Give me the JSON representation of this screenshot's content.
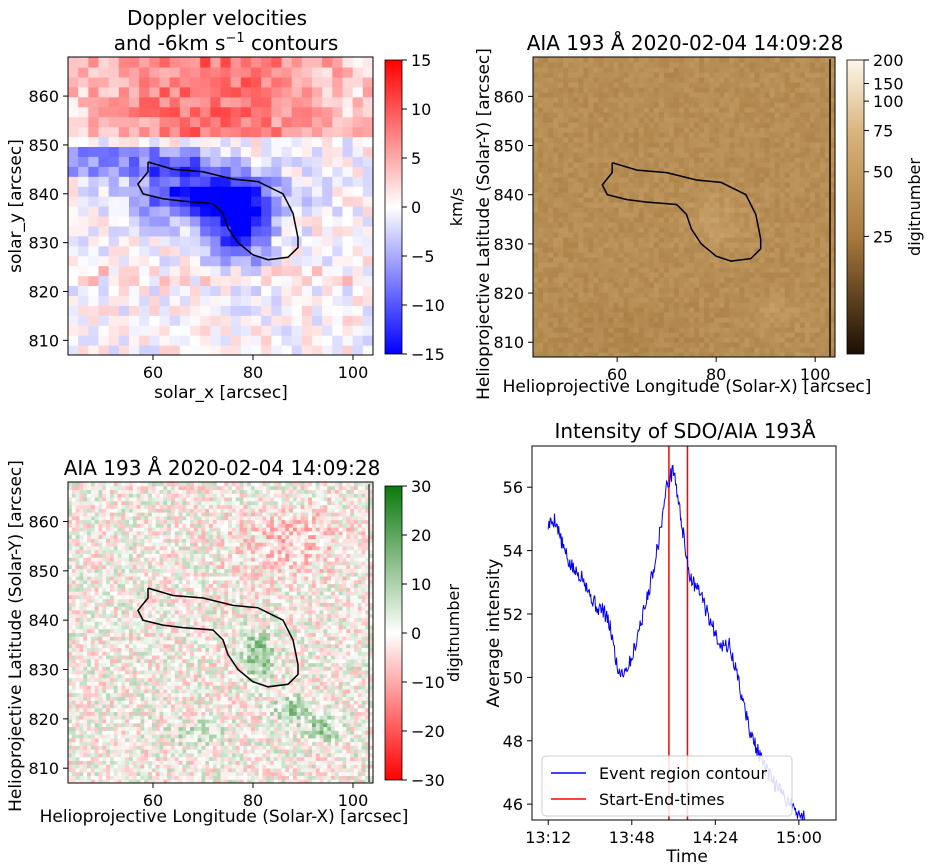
{
  "panels": {
    "doppler": {
      "title_line1": "Doppler velocities",
      "title_line2_prefix": "and -6km s",
      "title_line2_sup": "−1",
      "title_line2_suffix": " contours",
      "xlabel": "solar_x [arcsec]",
      "ylabel": "solar_y [arcsec]",
      "xticks": [
        "60",
        "80",
        "100"
      ],
      "yticks": [
        "860",
        "850",
        "840",
        "830",
        "820",
        "810"
      ],
      "colorbar": {
        "label": "km/s",
        "ticks": [
          "15",
          "10",
          "5",
          "0",
          "−5",
          "−10",
          "−15"
        ],
        "colors": {
          "high": "#ff0000",
          "mid": "#ffffff",
          "low": "#0000ff"
        }
      }
    },
    "aia": {
      "title": "AIA 193 Å 2020-02-04 14:09:28",
      "xlabel": "Helioprojective Longitude (Solar-X) [arcsec]",
      "ylabel": "Helioprojective Latitude (Solar-Y) [arcsec]",
      "xticks": [
        "60",
        "80",
        "100"
      ],
      "yticks": [
        "860",
        "850",
        "840",
        "830",
        "820",
        "810"
      ],
      "colorbar": {
        "label": "digitnumber",
        "ticks": [
          "200",
          "150",
          "100",
          "75",
          "50",
          "25"
        ],
        "colors": {
          "high": "#fdf7ea",
          "mid": "#a87a3e",
          "low": "#1c0f04"
        }
      }
    },
    "diff": {
      "title": "AIA 193 Å 2020-02-04 14:09:28",
      "xlabel": "Helioprojective Longitude (Solar-X) [arcsec]",
      "ylabel": "Helioprojective Latitude (Solar-Y) [arcsec]",
      "xticks": [
        "60",
        "80",
        "100"
      ],
      "yticks": [
        "860",
        "850",
        "840",
        "830",
        "820",
        "810"
      ],
      "colorbar": {
        "label": "digitnumber",
        "ticks": [
          "30",
          "20",
          "10",
          "0",
          "−10",
          "−20",
          "−30"
        ],
        "colors": {
          "high": "#0a7a0a",
          "mid": "#ffffff",
          "low": "#ff0000"
        }
      }
    }
  },
  "chart_data": [
    {
      "type": "heatmap",
      "title": "Doppler velocities and -6km s−1 contours",
      "xlabel": "solar_x [arcsec]",
      "ylabel": "solar_y [arcsec]",
      "xlim": [
        43,
        104
      ],
      "ylim": [
        807,
        868
      ],
      "color_range": [
        -15,
        15
      ],
      "colorbar_label": "km/s",
      "contour_level": -6,
      "contour": [
        [
          59,
          846.5
        ],
        [
          64,
          845
        ],
        [
          70,
          844.5
        ],
        [
          76,
          843
        ],
        [
          81,
          842.5
        ],
        [
          86,
          840
        ],
        [
          88,
          836
        ],
        [
          89,
          831
        ],
        [
          89,
          829
        ],
        [
          87,
          827
        ],
        [
          83,
          826.5
        ],
        [
          80,
          827.5
        ],
        [
          77,
          830
        ],
        [
          75,
          833
        ],
        [
          74,
          836
        ],
        [
          72,
          838
        ],
        [
          66,
          838.5
        ],
        [
          62,
          839
        ],
        [
          58,
          840
        ],
        [
          57,
          842
        ],
        [
          59,
          844.5
        ],
        [
          59,
          846.5
        ]
      ]
    },
    {
      "type": "heatmap",
      "title": "AIA 193 Å 2020-02-04 14:09:28",
      "xlabel": "Helioprojective Longitude (Solar-X) [arcsec]",
      "ylabel": "Helioprojective Latitude (Solar-Y) [arcsec]",
      "xlim": [
        43,
        104
      ],
      "ylim": [
        807,
        868
      ],
      "color_range": [
        0,
        200
      ],
      "colorbar_label": "digitnumber",
      "contour": [
        [
          59,
          846.5
        ],
        [
          64,
          845
        ],
        [
          70,
          844.5
        ],
        [
          76,
          843
        ],
        [
          81,
          842.5
        ],
        [
          86,
          840
        ],
        [
          88,
          836
        ],
        [
          89,
          831
        ],
        [
          89,
          829
        ],
        [
          87,
          827
        ],
        [
          83,
          826.5
        ],
        [
          80,
          827.5
        ],
        [
          77,
          830
        ],
        [
          75,
          833
        ],
        [
          74,
          836
        ],
        [
          72,
          838
        ],
        [
          66,
          838.5
        ],
        [
          62,
          839
        ],
        [
          58,
          840
        ],
        [
          57,
          842
        ],
        [
          59,
          844.5
        ],
        [
          59,
          846.5
        ]
      ]
    },
    {
      "type": "heatmap",
      "title": "AIA 193 Å 2020-02-04 14:09:28",
      "xlabel": "Helioprojective Longitude (Solar-X) [arcsec]",
      "ylabel": "Helioprojective Latitude (Solar-Y) [arcsec]",
      "xlim": [
        43,
        104
      ],
      "ylim": [
        807,
        868
      ],
      "color_range": [
        -30,
        30
      ],
      "colorbar_label": "digitnumber",
      "contour": [
        [
          59,
          846.5
        ],
        [
          64,
          845
        ],
        [
          70,
          844.5
        ],
        [
          76,
          843
        ],
        [
          81,
          842.5
        ],
        [
          86,
          840
        ],
        [
          88,
          836
        ],
        [
          89,
          831
        ],
        [
          89,
          829
        ],
        [
          87,
          827
        ],
        [
          83,
          826.5
        ],
        [
          80,
          827.5
        ],
        [
          77,
          830
        ],
        [
          75,
          833
        ],
        [
          74,
          836
        ],
        [
          72,
          838
        ],
        [
          66,
          838.5
        ],
        [
          62,
          839
        ],
        [
          58,
          840
        ],
        [
          57,
          842
        ],
        [
          59,
          844.5
        ],
        [
          59,
          846.5
        ]
      ]
    },
    {
      "type": "line",
      "title": "Intensity of SDO/AIA 193Å",
      "xlabel": "Time",
      "ylabel": "Average intensity",
      "xlim": [
        "13:05",
        "15:16"
      ],
      "ylim": [
        45.5,
        57.3
      ],
      "xticks": [
        "13:12",
        "13:48",
        "14:24",
        "15:00"
      ],
      "yticks": [
        "56",
        "54",
        "52",
        "50",
        "48",
        "46"
      ],
      "legend_position": "lower left",
      "series": [
        {
          "name": "Event region contour",
          "color": "#0000ff",
          "x": [
            "13:12",
            "13:15",
            "13:18",
            "13:21",
            "13:24",
            "13:27",
            "13:30",
            "13:33",
            "13:36",
            "13:39",
            "13:42",
            "13:45",
            "13:48",
            "13:51",
            "13:54",
            "13:57",
            "14:00",
            "14:03",
            "14:06",
            "14:09",
            "14:11",
            "14:13",
            "14:15",
            "14:18",
            "14:21",
            "14:24",
            "14:27",
            "14:30",
            "14:33",
            "14:36",
            "14:39",
            "14:42",
            "14:45",
            "14:48",
            "14:51",
            "14:54",
            "14:57",
            "15:00",
            "15:03",
            "15:06",
            "15:08"
          ],
          "values": [
            54.8,
            55.0,
            54.2,
            53.6,
            53.3,
            53.2,
            52.6,
            52.2,
            52.1,
            51.5,
            50.2,
            50.2,
            50.6,
            51.5,
            52.3,
            53.3,
            54.5,
            56.0,
            56.6,
            55.1,
            54.1,
            53.2,
            52.9,
            52.6,
            51.9,
            51.4,
            51.0,
            51.0,
            50.2,
            49.2,
            48.3,
            47.7,
            47.2,
            46.8,
            46.5,
            46.2,
            46.0,
            45.6,
            null,
            null,
            null
          ]
        },
        {
          "name": "Start-End-times",
          "color": "#ff0000",
          "x": [
            "14:04",
            "14:12"
          ]
        }
      ]
    }
  ]
}
